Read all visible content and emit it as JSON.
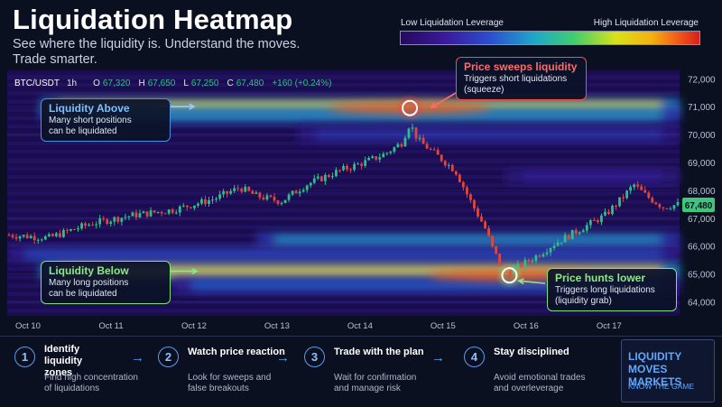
{
  "header": {
    "title": "Liquidation Heatmap",
    "subtitle": "See where the liquidity is. Understand the moves.\nTrade smarter."
  },
  "legend": {
    "low_label": "Low Liquidation Leverage",
    "high_label": "High Liquidation Leverage"
  },
  "ticker": {
    "pair": "BTC/USDT",
    "interval": "1h",
    "open_label": "O",
    "open": "67,320",
    "high_label": "H",
    "high": "67,650",
    "low_label": "L",
    "low": "67,250",
    "close_label": "C",
    "close": "67,480",
    "change": "+160 (+0.24%)"
  },
  "callouts": {
    "above": {
      "title": "Liquidity Above",
      "body": "Many short positions\ncan be liquidated"
    },
    "below": {
      "title": "Liquidity Below",
      "body": "Many long positions\ncan be liquidated"
    },
    "sweep": {
      "title": "Price sweeps liquidity",
      "body": "Triggers short liquidations\n(squeeze)"
    },
    "hunts": {
      "title": "Price hunts lower",
      "body": "Triggers long liquidations\n(liquidity grab)"
    }
  },
  "chart_data": {
    "type": "heatmap",
    "overlay": "candlestick",
    "x": {
      "ticks": [
        "Oct 10",
        "Oct 11",
        "Oct 12",
        "Oct 13",
        "Oct 14",
        "Oct 15",
        "Oct 16",
        "Oct 17"
      ],
      "range": [
        0,
        8.1
      ]
    },
    "y": {
      "ticks": [
        "64,000",
        "65,000",
        "66,000",
        "67,000",
        "68,000",
        "69,000",
        "70,000",
        "71,000",
        "72,000"
      ],
      "range": [
        63500,
        72300
      ]
    },
    "current_price": 67480,
    "current_price_label": "67,480",
    "liquidity_bands": [
      {
        "price": 71000,
        "intensity": 0.75,
        "from_day": 0.4,
        "to_day": 8.1
      },
      {
        "price": 70700,
        "intensity": 0.45,
        "from_day": 0.4,
        "to_day": 8.1
      },
      {
        "price": 70000,
        "intensity": 0.25,
        "from_day": 3.5,
        "to_day": 8.1
      },
      {
        "price": 68500,
        "intensity": 0.2,
        "from_day": 6.0,
        "to_day": 8.1
      },
      {
        "price": 66200,
        "intensity": 0.45,
        "from_day": 3.0,
        "to_day": 8.1
      },
      {
        "price": 65700,
        "intensity": 0.3,
        "from_day": 0.0,
        "to_day": 8.1
      },
      {
        "price": 65100,
        "intensity": 0.8,
        "from_day": 0.4,
        "to_day": 8.1
      },
      {
        "price": 64600,
        "intensity": 0.35,
        "from_day": 2.0,
        "to_day": 8.1
      }
    ],
    "price_path": [
      [
        0.0,
        66400
      ],
      [
        0.5,
        66300
      ],
      [
        1.0,
        66800
      ],
      [
        1.5,
        67100
      ],
      [
        2.0,
        67300
      ],
      [
        2.5,
        67700
      ],
      [
        2.8,
        68100
      ],
      [
        3.0,
        67800
      ],
      [
        3.3,
        67600
      ],
      [
        3.6,
        68200
      ],
      [
        4.0,
        68700
      ],
      [
        4.3,
        69000
      ],
      [
        4.55,
        69300
      ],
      [
        4.75,
        69700
      ],
      [
        4.85,
        70400
      ],
      [
        4.95,
        69800
      ],
      [
        5.2,
        69200
      ],
      [
        5.4,
        68700
      ],
      [
        5.6,
        67500
      ],
      [
        5.75,
        66700
      ],
      [
        5.85,
        65900
      ],
      [
        5.95,
        65300
      ],
      [
        6.05,
        65100
      ],
      [
        6.3,
        65500
      ],
      [
        6.6,
        66100
      ],
      [
        6.9,
        66600
      ],
      [
        7.2,
        67100
      ],
      [
        7.4,
        67700
      ],
      [
        7.55,
        68200
      ],
      [
        7.7,
        67800
      ],
      [
        7.9,
        67400
      ],
      [
        8.1,
        67500
      ]
    ],
    "markers": [
      {
        "day": 4.85,
        "price": 70950,
        "color": "#ff3b3b"
      },
      {
        "day": 6.05,
        "price": 64950,
        "color": "#7ee07a"
      }
    ]
  },
  "steps": [
    {
      "num": "1",
      "title": "Identify\nliquidity zones",
      "desc": "Find high concentration\nof liquidations"
    },
    {
      "num": "2",
      "title": "Watch price reaction",
      "desc": "Look for sweeps and\nfalse breakouts"
    },
    {
      "num": "3",
      "title": "Trade with the plan",
      "desc": "Wait for confirmation\nand manage risk"
    },
    {
      "num": "4",
      "title": "Stay disciplined",
      "desc": "Avoid emotional trades\nand overleverage"
    }
  ],
  "step_arrow": "→",
  "motto": {
    "title": "LIQUIDITY\nMOVES MARKETS",
    "subtitle": "KNOW THE GAME"
  },
  "colors": {
    "accent": "#5a9cf0",
    "bull": "#2fbf86",
    "bear": "#e0463b",
    "current_tag": "#3ec77c"
  }
}
